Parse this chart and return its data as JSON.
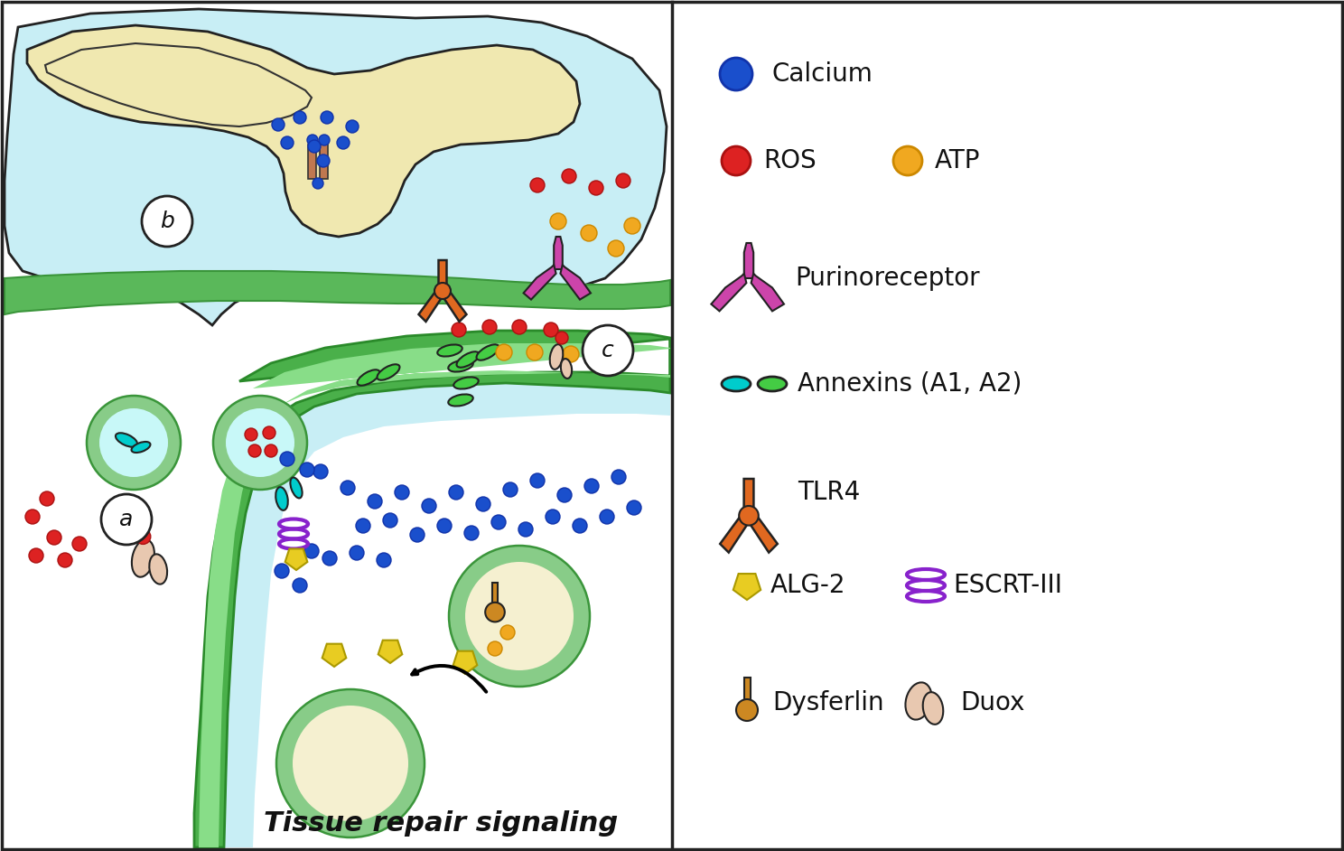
{
  "title": "Tissue repair signaling",
  "calcium_color": "#1a4fcc",
  "ros_color": "#dd2222",
  "atp_color": "#f0a820",
  "membrane_color": "#5ab85a",
  "membrane_light": "#7dd87d",
  "membrane_dark": "#3a953a",
  "nucleus_color": "#f0e8b0",
  "cell_bg": "#c8eef5",
  "white": "#ffffff",
  "purinoreceptor_color": "#cc44aa",
  "annexin_cyan": "#00cccc",
  "annexin_green": "#44cc44",
  "tlr4_color": "#e06820",
  "alg2_color": "#e8cc22",
  "escrt_color": "#8822cc",
  "dysferlin_color": "#cc8822",
  "duox_color": "#e8c8b0",
  "label_a": [
    140,
    575
  ],
  "label_b": [
    185,
    245
  ],
  "label_c": [
    673,
    388
  ]
}
